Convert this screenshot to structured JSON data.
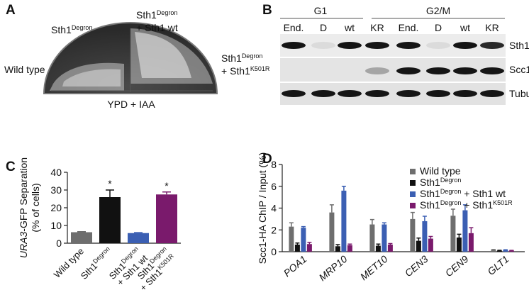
{
  "panel_a": {
    "letter": "A",
    "labels": [
      [
        [
          "Sth1",
          {
            "sup": "Degron"
          }
        ]
      ],
      [
        [
          "Sth1",
          {
            "sup": "Degron"
          }
        ],
        [
          "+ Sth1 wt"
        ]
      ],
      [
        [
          "Wild type"
        ]
      ],
      [
        [
          "Sth1",
          {
            "sup": "Degron"
          }
        ],
        [
          "+ Sth1",
          {
            "sup": "K501R"
          }
        ]
      ]
    ],
    "medium": "YPD + IAA"
  },
  "panel_b": {
    "letter": "B",
    "groups": [
      "G1",
      "G2/M"
    ],
    "lanes": [
      "End.",
      "D",
      "wt",
      "KR",
      "End.",
      "D",
      "wt",
      "KR"
    ],
    "rows": [
      "Sth1",
      "Scc1",
      "Tubulin"
    ]
  },
  "chart_data": [
    {
      "letter": "C",
      "type": "bar",
      "ylabel": [
        [
          {
            "italic": "URA3"
          },
          "-GFP Separation"
        ],
        [
          "(% of cells)"
        ]
      ],
      "categories": [
        [
          [
            "Wild type"
          ]
        ],
        [
          [
            "Sth1",
            {
              "sup": "Degron"
            }
          ]
        ],
        [
          [
            "Sth1",
            {
              "sup": "Degron"
            }
          ],
          [
            "+ Sth1 wt"
          ]
        ],
        [
          [
            "Sth1",
            {
              "sup": "Degron"
            }
          ],
          [
            "+ Sth1",
            {
              "sup": "K501R"
            }
          ]
        ]
      ],
      "values": [
        6.2,
        26,
        5.7,
        27.5
      ],
      "errors": [
        0.3,
        4,
        0.3,
        1.4
      ],
      "colors": [
        "#6e6e6e",
        "#111111",
        "#3b5fb3",
        "#7a1a6c"
      ],
      "significance": [
        null,
        "*",
        null,
        "*"
      ],
      "ylim": [
        0,
        40
      ],
      "yticks": [
        0,
        10,
        20,
        30,
        40
      ]
    },
    {
      "letter": "D",
      "type": "grouped_bar",
      "ylabel": [
        [
          "Scc1-HA ChIP / Input (%)"
        ]
      ],
      "categories": [
        "POA1",
        "MRP10",
        "MET10",
        "CEN3",
        "CEN9",
        "GLT1"
      ],
      "series": [
        {
          "name": [
            "Wild type"
          ],
          "color": "#6e6e6e",
          "values": [
            2.3,
            3.6,
            2.5,
            3.0,
            3.3,
            0.15
          ],
          "errors": [
            0.35,
            0.7,
            0.45,
            0.6,
            0.6,
            0.05
          ]
        },
        {
          "name": [
            "Sth1",
            {
              "sup": "Degron"
            }
          ],
          "color": "#111111",
          "values": [
            0.65,
            0.5,
            0.55,
            1.0,
            1.3,
            0.1
          ],
          "errors": [
            0.15,
            0.15,
            0.15,
            0.25,
            0.3,
            0.03
          ]
        },
        {
          "name": [
            "Sth1",
            {
              "sup": "Degron"
            },
            " + Sth1 wt"
          ],
          "color": "#3b5fb3",
          "values": [
            2.2,
            5.6,
            2.5,
            2.8,
            3.8,
            0.15
          ],
          "errors": [
            0.1,
            0.4,
            0.15,
            0.45,
            0.5,
            0.03
          ]
        },
        {
          "name": [
            "Sth1",
            {
              "sup": "Degron"
            },
            " + Sth1",
            {
              "sup": "K501R"
            }
          ],
          "color": "#7a1a6c",
          "values": [
            0.7,
            0.6,
            0.65,
            1.2,
            1.7,
            0.1
          ],
          "errors": [
            0.15,
            0.1,
            0.1,
            0.2,
            0.5,
            0.02
          ]
        }
      ],
      "legend": "upper right",
      "ylim": [
        0,
        8
      ],
      "yticks": [
        0,
        2,
        4,
        6,
        8
      ]
    }
  ]
}
